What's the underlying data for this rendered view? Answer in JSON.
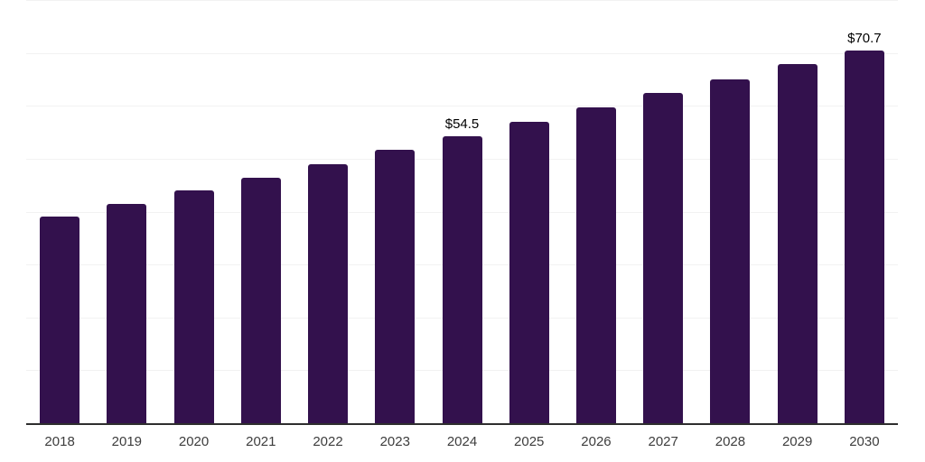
{
  "chart_data": {
    "type": "bar",
    "title": "",
    "xlabel": "",
    "ylabel": "",
    "categories": [
      "2018",
      "2019",
      "2020",
      "2021",
      "2022",
      "2023",
      "2024",
      "2025",
      "2026",
      "2027",
      "2028",
      "2029",
      "2030"
    ],
    "values": [
      39.3,
      41.7,
      44.1,
      46.6,
      49.2,
      51.8,
      54.5,
      57.2,
      59.9,
      62.6,
      65.2,
      68.0,
      70.7
    ],
    "data_labels": [
      "",
      "",
      "",
      "",
      "",
      "",
      "$54.5",
      "",
      "",
      "",
      "",
      "",
      "$70.7"
    ],
    "ylim": [
      0,
      80
    ],
    "gridline_step": 10,
    "grid": "horizontal",
    "legend": "none",
    "y_tick_labels_visible": false,
    "colors": {
      "bar": "#33114d",
      "gridline": "#f2f2f2",
      "axis_line": "#2e2e2e",
      "data_label": "#000000",
      "tick_label": "#3d3d3d",
      "background": "#ffffff"
    }
  }
}
